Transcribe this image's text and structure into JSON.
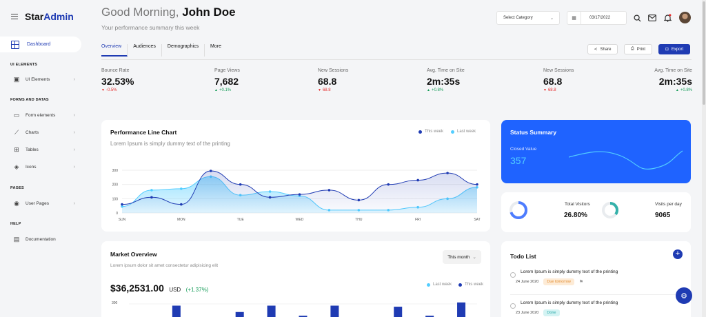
{
  "brand": {
    "prefix": "Star",
    "suffix": "Admin"
  },
  "sidebar": {
    "active": "Dashboard",
    "sections": [
      {
        "title": "UI ELEMENTS",
        "items": [
          {
            "label": "UI Elements",
            "icon": "layout-icon",
            "chevron": "›"
          }
        ]
      },
      {
        "title": "FORMS AND DATAS",
        "items": [
          {
            "label": "Form elements",
            "icon": "form-icon",
            "chevron": "›"
          },
          {
            "label": "Charts",
            "icon": "chart-icon",
            "chevron": "›"
          },
          {
            "label": "Tables",
            "icon": "table-icon",
            "chevron": "›"
          },
          {
            "label": "Icons",
            "icon": "layers-icon",
            "chevron": "›"
          }
        ]
      },
      {
        "title": "PAGES",
        "items": [
          {
            "label": "User Pages",
            "icon": "user-icon",
            "chevron": "›"
          }
        ]
      },
      {
        "title": "HELP",
        "items": [
          {
            "label": "Documentation",
            "icon": "doc-icon",
            "chevron": ""
          }
        ]
      }
    ]
  },
  "header": {
    "greeting": "Good Morning,",
    "user": "John Doe",
    "subtitle": "Your performance summary this week",
    "category_placeholder": "Select Category",
    "date": "03/17/2022"
  },
  "tabs": [
    "Overview",
    "Audiences",
    "Demographics",
    "More"
  ],
  "actions": {
    "share": "Share",
    "print": "Print",
    "export": "Export"
  },
  "stats": [
    {
      "title": "Bounce Rate",
      "value": "32.53%",
      "delta": "-0.5%",
      "trend": "down"
    },
    {
      "title": "Page Views",
      "value": "7,682",
      "delta": "+0.1%",
      "trend": "up"
    },
    {
      "title": "New Sessions",
      "value": "68.8",
      "delta": "68.8",
      "trend": "down"
    },
    {
      "title": "Avg. Time on Site",
      "value": "2m:35s",
      "delta": "+0.8%",
      "trend": "up"
    },
    {
      "title": "New Sessions",
      "value": "68.8",
      "delta": "68.8",
      "trend": "down"
    },
    {
      "title": "Avg. Time on Site",
      "value": "2m:35s",
      "delta": "+0.8%",
      "trend": "up"
    }
  ],
  "performance": {
    "title": "Performance Line Chart",
    "subtitle": "Lorem Ipsum is simply dummy text of the printing",
    "legend_this": "This week",
    "legend_last": "Last week"
  },
  "chart_data": [
    {
      "type": "line",
      "title": "Performance Line Chart",
      "x": [
        "SUN",
        "",
        "MON",
        "",
        "TUE",
        "",
        "WED",
        "",
        "THU",
        "",
        "FRI",
        "",
        "SAT"
      ],
      "x_tick_labels": [
        "SUN",
        "MON",
        "TUE",
        "WED",
        "THU",
        "FRI",
        "SAT"
      ],
      "ylim": [
        0,
        300
      ],
      "yticks": [
        0,
        100,
        200,
        300
      ],
      "series": [
        {
          "name": "This week",
          "color": "#1f3bb3",
          "values": [
            60,
            110,
            60,
            295,
            200,
            110,
            130,
            160,
            90,
            200,
            230,
            280,
            200
          ]
        },
        {
          "name": "Last week",
          "color": "#52cdff",
          "values": [
            45,
            160,
            170,
            255,
            125,
            150,
            120,
            20,
            20,
            20,
            40,
            100,
            180
          ]
        }
      ]
    },
    {
      "type": "bar",
      "title": "Market Overview",
      "ylim": [
        0,
        300
      ],
      "yticks": [
        300
      ],
      "series": [
        {
          "name": "Last week",
          "color": "#52cdff"
        },
        {
          "name": "This week",
          "color": "#1f3bb3",
          "values": [
            5,
            120,
            5,
            60,
            120,
            25,
            120,
            10,
            110,
            25,
            150
          ]
        }
      ]
    }
  ],
  "status": {
    "title": "Status Summary",
    "label": "Closed Value",
    "value": "357"
  },
  "visitors": {
    "total_label": "Total Visitors",
    "total_value": "26.80%",
    "perday_label": "Visits per day",
    "perday_value": "9065",
    "total_fraction": 0.7,
    "perday_fraction": 0.35
  },
  "market": {
    "title": "Market Overview",
    "subtitle": "Lorem ipsum dolor sit amet consectetur adipisicing elit",
    "period": "This month",
    "amount": "$36,2531.00",
    "currency": "USD",
    "change": "(+1.37%)",
    "legend_last": "Last week",
    "legend_this": "This week",
    "ytick": "300"
  },
  "todo": {
    "title": "Todo List",
    "items": [
      {
        "text": "Lorem Ipsum is simply dummy text of the printing",
        "date": "24 June 2020",
        "tag": "Due tomorrow"
      },
      {
        "text": "Lorem Ipsum is simply dummy text of the printing",
        "date": "23 June 2020",
        "tag": "Done"
      }
    ]
  },
  "colors": {
    "accent": "#1f3bb3",
    "light_blue": "#52cdff",
    "status_bg": "#1f63ff",
    "down": "#e62e2e",
    "up": "#159c58"
  }
}
